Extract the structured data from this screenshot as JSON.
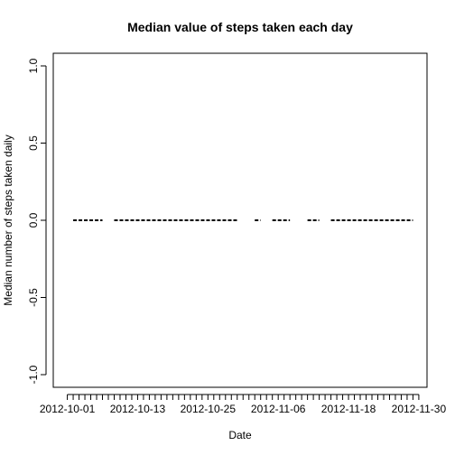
{
  "chart_data": {
    "type": "line",
    "title": "Median value of steps taken each day",
    "xlabel": "Date",
    "ylabel": "Median number of steps taken daily",
    "ylim": [
      -1.0,
      1.0
    ],
    "y_ticks": [
      "-1.0",
      "-0.5",
      "0.0",
      "0.5",
      "1.0"
    ],
    "x_tick_labels": [
      "2012-10-01",
      "2012-10-13",
      "2012-10-25",
      "2012-11-06",
      "2012-11-18",
      "2012-11-30"
    ],
    "x_ticks_total": 61,
    "x_labeled_every": 12,
    "x_range_days": [
      -2.4,
      61.4
    ],
    "series": [
      {
        "line_style": "dashed",
        "color": "#000000",
        "segments": [
          {
            "start": "2012-10-02",
            "end": "2012-10-07",
            "y": 0
          },
          {
            "start": "2012-10-09",
            "end": "2012-10-30",
            "y": 0
          },
          {
            "start": "2012-11-02",
            "end": "2012-11-03",
            "y": 0
          },
          {
            "start": "2012-11-05",
            "end": "2012-11-08",
            "y": 0
          },
          {
            "start": "2012-11-11",
            "end": "2012-11-13",
            "y": 0
          },
          {
            "start": "2012-11-15",
            "end": "2012-11-29",
            "y": 0
          }
        ]
      }
    ],
    "grid": false,
    "legend": "none"
  }
}
